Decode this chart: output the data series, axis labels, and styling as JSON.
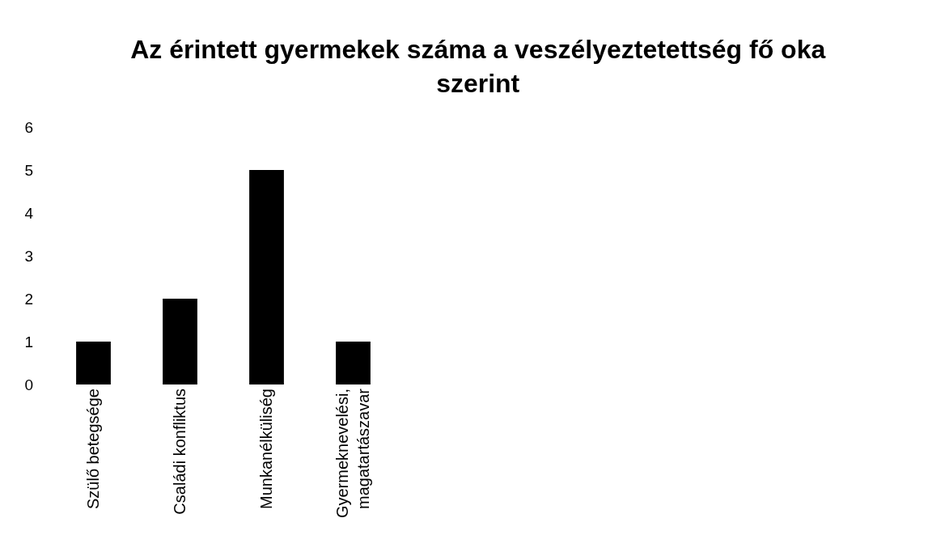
{
  "chart_data": {
    "type": "bar",
    "title": "Az érintett gyermekek száma a veszélyeztetettség fő oka\nszerint",
    "categories": [
      "Szülő betegsége",
      "Családi konfliktus",
      "Munkanélküliség",
      "Gyermeknevelési,\nmagatartászavar"
    ],
    "values": [
      1,
      2,
      5,
      1
    ],
    "color": "#000000",
    "ylim": [
      0,
      6
    ],
    "yticks": [
      0,
      1,
      2,
      3,
      4,
      5,
      6
    ],
    "grid": false
  }
}
